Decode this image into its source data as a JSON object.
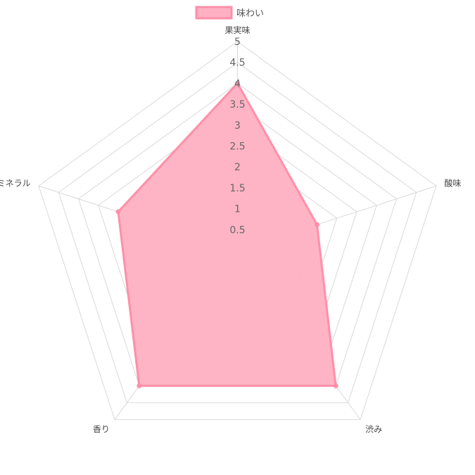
{
  "chart_data": {
    "type": "radar",
    "categories": [
      "果実味",
      "酸味",
      "渋み",
      "香り",
      "ミネラル"
    ],
    "series": [
      {
        "name": "味わい",
        "values": [
          4,
          2,
          4,
          4,
          3
        ],
        "line_color": "#ff8fa8",
        "fill_color": "#ffb0c2"
      }
    ],
    "r_range": [
      0,
      5
    ],
    "tick_step": 0.5,
    "ticks": [
      "0.5",
      "1",
      "1.5",
      "2",
      "2.5",
      "3",
      "3.5",
      "4",
      "4.5",
      "5"
    ],
    "legend_position": "top",
    "grid": true,
    "grid_color": "#d9d9d9"
  }
}
